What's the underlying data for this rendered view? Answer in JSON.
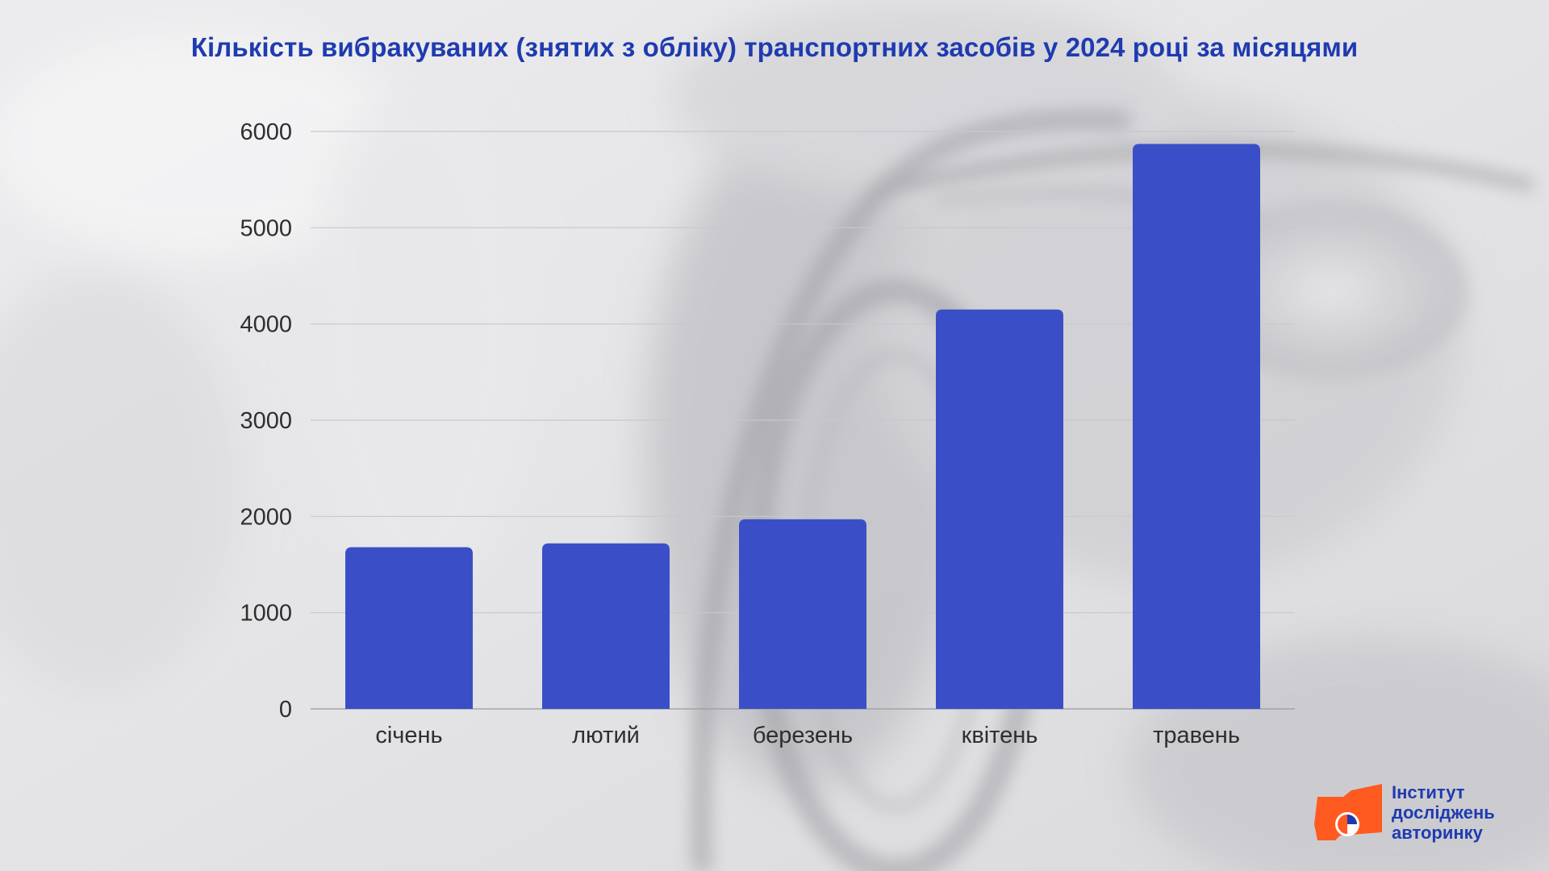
{
  "title": "Кількість вибракуваних (знятих з обліку) транспортних засобів у 2024 році за місяцями",
  "colors": {
    "bar": "#3a4fc7",
    "title": "#1f3bb0",
    "grid": "#c8c8cc",
    "tick_text": "#2e2e2e",
    "logo_orange": "#ff5a1f",
    "logo_blue": "#1f3bb0"
  },
  "chart_data": {
    "type": "bar",
    "title": "Кількість вибракуваних (знятих з обліку) транспортних засобів у 2024 році за місяцями",
    "categories": [
      "січень",
      "лютий",
      "березень",
      "квітень",
      "травень"
    ],
    "values": [
      1680,
      1720,
      1970,
      4150,
      5870
    ],
    "xlabel": "",
    "ylabel": "",
    "ylim": [
      0,
      6000
    ],
    "yticks": [
      0,
      1000,
      2000,
      3000,
      4000,
      5000,
      6000
    ],
    "yticklabels": [
      "0",
      "1000",
      "2000",
      "3000",
      "4000",
      "5000",
      "6000"
    ],
    "grid": true,
    "legend": "none"
  },
  "logo": {
    "line1": "Інститут",
    "line2": "досліджень",
    "line3": "авторинку",
    "icon": "pie-chart-icon"
  }
}
